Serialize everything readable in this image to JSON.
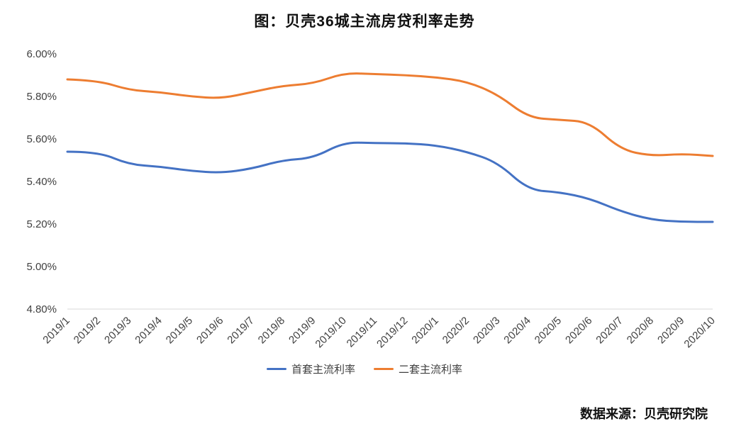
{
  "title": "图：贝壳36城主流房贷利率走势",
  "source": "数据来源：贝壳研究院",
  "colors": {
    "first_series": "#4472C4",
    "second_series": "#ED7D31",
    "axis_line": "#D9D9D9",
    "tick_text": "#404040"
  },
  "chart_data": {
    "type": "line",
    "title": "图：贝壳36城主流房贷利率走势",
    "xlabel": "",
    "ylabel": "",
    "ylim": [
      4.8,
      6.0
    ],
    "grid": false,
    "legend_position": "bottom",
    "categories": [
      "2019/1",
      "2019/2",
      "2019/3",
      "2019/4",
      "2019/5",
      "2019/6",
      "2019/7",
      "2019/8",
      "2019/9",
      "2019/10",
      "2019/11",
      "2019/12",
      "2020/1",
      "2020/2",
      "2020/3",
      "2020/4",
      "2020/5",
      "2020/6",
      "2020/7",
      "2020/8",
      "2020/9",
      "2020/10"
    ],
    "y_ticks": [
      {
        "label": "6.00%",
        "value": 6.0
      },
      {
        "label": "5.80%",
        "value": 5.8
      },
      {
        "label": "5.60%",
        "value": 5.6
      },
      {
        "label": "5.40%",
        "value": 5.4
      },
      {
        "label": "5.20%",
        "value": 5.2
      },
      {
        "label": "5.00%",
        "value": 5.0
      },
      {
        "label": "4.80%",
        "value": 4.8
      }
    ],
    "series": [
      {
        "name": "首套主流利率",
        "color": "#4472C4",
        "values": [
          5.54,
          5.54,
          5.48,
          5.47,
          5.45,
          5.44,
          5.46,
          5.5,
          5.51,
          5.585,
          5.58,
          5.58,
          5.57,
          5.54,
          5.49,
          5.36,
          5.35,
          5.32,
          5.26,
          5.22,
          5.21,
          5.21
        ]
      },
      {
        "name": "二套主流利率",
        "color": "#ED7D31",
        "values": [
          5.88,
          5.875,
          5.83,
          5.82,
          5.8,
          5.79,
          5.82,
          5.85,
          5.86,
          5.91,
          5.905,
          5.9,
          5.89,
          5.87,
          5.81,
          5.7,
          5.69,
          5.68,
          5.55,
          5.52,
          5.53,
          5.52
        ]
      }
    ]
  }
}
